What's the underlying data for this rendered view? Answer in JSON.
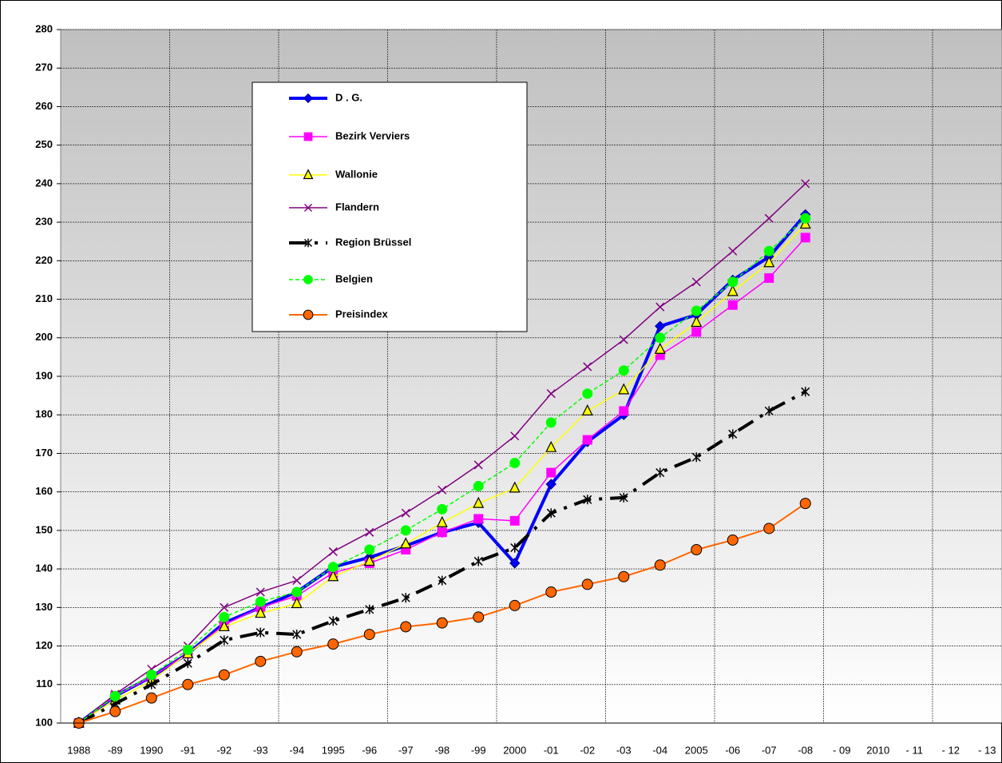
{
  "chart_data": {
    "type": "line",
    "categories": [
      "1988",
      "-89",
      "1990",
      "-91",
      "-92",
      "-93",
      "-94",
      "1995",
      "-96",
      "-97",
      "-98",
      "-99",
      "2000",
      "-01",
      "-02",
      "-03",
      "-04",
      "2005",
      "-06",
      "-07",
      "-08",
      "- 09",
      "2010",
      "- 11",
      "- 12",
      "- 13"
    ],
    "ylim": [
      100,
      280
    ],
    "yticks": [
      100,
      110,
      120,
      130,
      140,
      150,
      160,
      170,
      180,
      190,
      200,
      210,
      220,
      230,
      240,
      250,
      260,
      270,
      280
    ],
    "grid": true,
    "series": [
      {
        "name": "D . G.",
        "color": "#0000ff",
        "marker": "diamond",
        "width": 4,
        "dash": "",
        "values": [
          100,
          107,
          112,
          118,
          126,
          130,
          134,
          140.5,
          143,
          146,
          149.5,
          152,
          141.5,
          162,
          173,
          180,
          203,
          206,
          215,
          221,
          232,
          null,
          null,
          null,
          null,
          null
        ]
      },
      {
        "name": "Bezirk  Verviers",
        "color": "#ff00ff",
        "marker": "square",
        "width": 1.5,
        "dash": "",
        "values": [
          100,
          107,
          112,
          118,
          125.5,
          130,
          133,
          139,
          141.5,
          145,
          149.5,
          153,
          152.5,
          165,
          173.5,
          181,
          195.5,
          201.5,
          208.5,
          215.5,
          226,
          null,
          null,
          null,
          null,
          null
        ]
      },
      {
        "name": "Wallonie",
        "color": "#ffff00",
        "marker": "triangle",
        "width": 1.5,
        "dash": "",
        "values": [
          100,
          106,
          111,
          118,
          125,
          128.5,
          131,
          138,
          142,
          146.5,
          152,
          157,
          161,
          171.5,
          181,
          186.5,
          197,
          204,
          212,
          219.5,
          229.5,
          null,
          null,
          null,
          null,
          null
        ]
      },
      {
        "name": "Flandern",
        "color": "#800080",
        "marker": "x",
        "width": 1.5,
        "dash": "",
        "values": [
          100,
          107.5,
          114,
          120,
          130,
          134,
          137,
          144.5,
          149.5,
          154.5,
          160.5,
          167,
          174.5,
          185.5,
          192.5,
          199.5,
          208,
          214.5,
          222.5,
          231,
          240,
          null,
          null,
          null,
          null,
          null
        ]
      },
      {
        "name": "Region   Brüssel",
        "color": "#000000",
        "marker": "asterisk",
        "width": 4,
        "dash": "22 10 4 10",
        "values": [
          100,
          105,
          110,
          115.5,
          121.5,
          123.5,
          123,
          126.5,
          129.5,
          132.5,
          137,
          142,
          145.5,
          154.5,
          158,
          158.5,
          165,
          169,
          175,
          181,
          186,
          null,
          null,
          null,
          null,
          null
        ]
      },
      {
        "name": "Belgien",
        "color": "#00ff00",
        "marker": "circle",
        "width": 1.5,
        "dash": "5 3",
        "values": [
          100,
          107,
          112.5,
          119,
          127.5,
          131.5,
          134,
          140.5,
          145,
          150,
          155.5,
          161.5,
          167.5,
          178,
          185.5,
          191.5,
          200,
          207,
          214.5,
          222.5,
          231,
          null,
          null,
          null,
          null,
          null
        ]
      },
      {
        "name": "Preisindex",
        "color": "#ff6600",
        "marker": "circle-outline",
        "width": 2,
        "dash": "",
        "values": [
          100,
          103,
          106.5,
          110,
          112.5,
          116,
          118.5,
          120.5,
          123,
          125,
          126,
          127.5,
          130.5,
          134,
          136,
          138,
          141,
          145,
          147.5,
          150.5,
          157,
          null,
          null,
          null,
          null,
          null
        ]
      }
    ]
  }
}
